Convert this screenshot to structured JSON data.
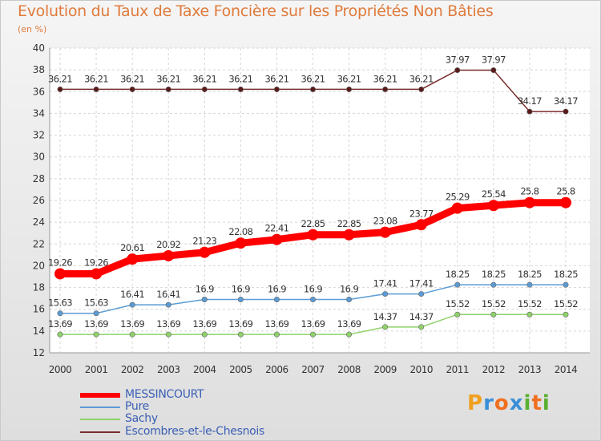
{
  "title": "Evolution du Taux de Taxe Foncière sur les Propriétés Non Bâties",
  "subtitle": "(en %)",
  "logo": {
    "letters": [
      "P",
      "r",
      "o",
      "x",
      "i",
      "t",
      "i"
    ],
    "colors": [
      "#f0a020",
      "#3a8fd8",
      "#f07020",
      "#3a8fd8",
      "#5ab030",
      "#f07020",
      "#5ab030"
    ]
  },
  "chart_data": {
    "type": "line",
    "title": "Evolution du Taux de Taxe Foncière sur les Propriétés Non Bâties",
    "ylabel": "(en %)",
    "x": [
      "2000",
      "2001",
      "2002",
      "2003",
      "2004",
      "2005",
      "2006",
      "2007",
      "2008",
      "2009",
      "2010",
      "2011",
      "2012",
      "2013",
      "2014"
    ],
    "ylim": [
      12,
      40
    ],
    "yticks": [
      "12",
      "14",
      "16",
      "18",
      "20",
      "22",
      "24",
      "26",
      "28",
      "30",
      "32",
      "34",
      "36",
      "38",
      "40"
    ],
    "grid": true,
    "legend_position": "bottom-left",
    "series": [
      {
        "name": "MESSINCOURT",
        "color": "#ff0000",
        "values": [
          19.26,
          19.26,
          20.61,
          20.92,
          21.23,
          22.08,
          22.41,
          22.85,
          22.85,
          23.08,
          23.77,
          25.29,
          25.54,
          25.8,
          25.8
        ],
        "labels": [
          "19.26",
          "19.26",
          "20.61",
          "20.92",
          "21.23",
          "22.08",
          "22.41",
          "22.85",
          "22.85",
          "23.08",
          "23.77",
          "25.29",
          "25.54",
          "25.8",
          "25.8"
        ]
      },
      {
        "name": "Pure",
        "color": "#5b9bd5",
        "values": [
          15.63,
          15.63,
          16.41,
          16.41,
          16.9,
          16.9,
          16.9,
          16.9,
          16.9,
          17.41,
          17.41,
          18.25,
          18.25,
          18.25,
          18.25
        ],
        "labels": [
          "15.63",
          "15.63",
          "16.41",
          "16.41",
          "16.9",
          "16.9",
          "16.9",
          "16.9",
          "16.9",
          "17.41",
          "17.41",
          "18.25",
          "18.25",
          "18.25",
          "18.25"
        ]
      },
      {
        "name": "Sachy",
        "color": "#8fd16a",
        "values": [
          13.69,
          13.69,
          13.69,
          13.69,
          13.69,
          13.69,
          13.69,
          13.69,
          13.69,
          14.37,
          14.37,
          15.52,
          15.52,
          15.52,
          15.52
        ],
        "labels": [
          "13.69",
          "13.69",
          "13.69",
          "13.69",
          "13.69",
          "13.69",
          "13.69",
          "13.69",
          "13.69",
          "14.37",
          "14.37",
          "15.52",
          "15.52",
          "15.52",
          "15.52"
        ]
      },
      {
        "name": "Escombres-et-le-Chesnois",
        "color": "#7a2e2e",
        "values": [
          36.21,
          36.21,
          36.21,
          36.21,
          36.21,
          36.21,
          36.21,
          36.21,
          36.21,
          36.21,
          36.21,
          37.97,
          37.97,
          34.17,
          34.17
        ],
        "labels": [
          "36.21",
          "36.21",
          "36.21",
          "36.21",
          "36.21",
          "36.21",
          "36.21",
          "36.21",
          "36.21",
          "36.21",
          "36.21",
          "37.97",
          "37.97",
          "34.17",
          "34.17"
        ]
      }
    ]
  }
}
